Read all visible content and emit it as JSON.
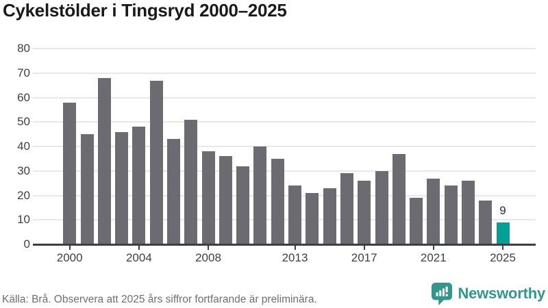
{
  "title": "Cykelstölder i Tingsryd 2000–2025",
  "footer": {
    "source_note": "Källa: Brå. Observera att 2025 års siffror fortfarande är preliminära."
  },
  "branding": {
    "logo_text": "Newsworthy",
    "logo_color": "#33968d"
  },
  "colors": {
    "bar": "#6c6b71",
    "highlight": "#00a096",
    "gridline": "#e7e7e7",
    "axis": "#3c3e42",
    "axis_label": "#3f3f3f",
    "title_text": "#1a1a1a",
    "annotation_text": "#2b2b2b",
    "footer_text": "#6e6e6e"
  },
  "chart_data": {
    "type": "bar",
    "title": "Cykelstölder i Tingsryd 2000–2025",
    "categories": [
      2000,
      2001,
      2002,
      2003,
      2004,
      2005,
      2006,
      2007,
      2008,
      2009,
      2010,
      2011,
      2012,
      2013,
      2014,
      2015,
      2016,
      2017,
      2018,
      2019,
      2020,
      2021,
      2022,
      2023,
      2024,
      2025
    ],
    "values": [
      58,
      45,
      68,
      46,
      48,
      67,
      43,
      51,
      38,
      36,
      32,
      40,
      35,
      24,
      21,
      23,
      29,
      26,
      30,
      37,
      19,
      27,
      24,
      26,
      18,
      9
    ],
    "highlight_year": 2025,
    "annotation": {
      "year": 2025,
      "label": "9"
    },
    "xlabel": "",
    "ylabel": "",
    "ylim": [
      0,
      80
    ],
    "yticks": [
      0,
      10,
      20,
      30,
      40,
      50,
      60,
      70,
      80
    ],
    "xticks": [
      2000,
      2004,
      2008,
      2013,
      2017,
      2021,
      2025
    ],
    "grid": true,
    "legend": false
  }
}
